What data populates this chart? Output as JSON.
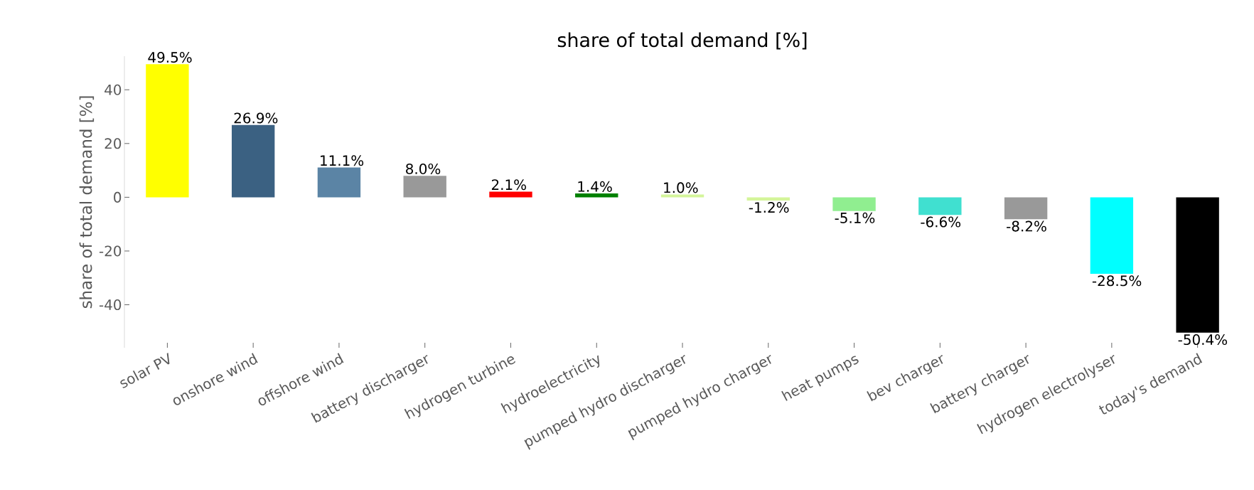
{
  "chart_data": {
    "type": "bar",
    "title": "share of total demand [%]",
    "ylabel": "share of total demand [%]",
    "categories": [
      "solar PV",
      "onshore wind",
      "offshore wind",
      "battery discharger",
      "hydrogen turbine",
      "hydroelectricity",
      "pumped hydro discharger",
      "pumped hydro charger",
      "heat pumps",
      "bev charger",
      "battery charger",
      "hydrogen electrolyser",
      "today's demand"
    ],
    "values": [
      49.5,
      26.9,
      11.1,
      8.0,
      2.1,
      1.4,
      1.0,
      -1.2,
      -5.1,
      -6.6,
      -8.2,
      -28.5,
      -50.4
    ],
    "value_labels": [
      "49.5%",
      "26.9%",
      "11.1%",
      "8.0%",
      "2.1%",
      "1.4%",
      "1.0%",
      "-1.2%",
      "-5.1%",
      "-6.6%",
      "-8.2%",
      "-28.5%",
      "-50.4%"
    ],
    "colors": [
      "#ffff00",
      "#3b6182",
      "#5b84a5",
      "#999999",
      "#ff0000",
      "#008000",
      "#d4f59a",
      "#d4f59a",
      "#90ee90",
      "#40e0d0",
      "#999999",
      "#00ffff",
      "#000000"
    ],
    "ylim": [
      -56,
      52.5
    ],
    "yticks": [
      -40,
      -20,
      0,
      20,
      40
    ]
  }
}
